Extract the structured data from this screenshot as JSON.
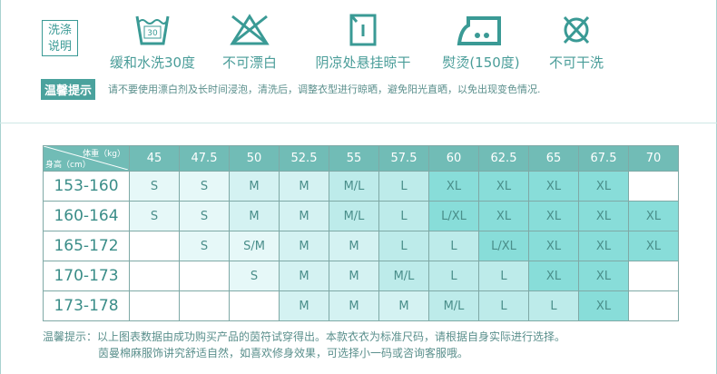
{
  "wash": {
    "label_line1": "洗涤",
    "label_line2": "说明",
    "items": [
      {
        "icon": "wash-30-icon",
        "label": "缓和水洗30度",
        "temp": "30"
      },
      {
        "icon": "no-bleach-icon",
        "label": "不可漂白"
      },
      {
        "icon": "line-dry-shade-icon",
        "label": "阴凉处悬挂晾干"
      },
      {
        "icon": "iron-medium-icon",
        "label": "熨烫(150度)"
      },
      {
        "icon": "no-dry-clean-icon",
        "label": "不可干洗"
      }
    ]
  },
  "tip": {
    "badge": "温馨提示",
    "text": "请不要使用漂白剂及长时间浸泡，清洗后，调整衣型进行晾晒，避免阳光直晒，以免出现变色情况."
  },
  "table": {
    "corner_weight": "体重（kg）",
    "corner_height": "身高（cm）",
    "weights": [
      "45",
      "47.5",
      "50",
      "52.5",
      "55",
      "57.5",
      "60",
      "62.5",
      "65",
      "67.5",
      "70"
    ],
    "rows": [
      {
        "height": "153-160",
        "sizes": [
          "S",
          "S",
          "M",
          "M",
          "M/L",
          "L",
          "XL",
          "XL",
          "XL",
          "XL",
          ""
        ]
      },
      {
        "height": "160-164",
        "sizes": [
          "S",
          "S",
          "M",
          "M",
          "M/L",
          "L",
          "L/XL",
          "XL",
          "XL",
          "XL",
          "XL"
        ]
      },
      {
        "height": "165-172",
        "sizes": [
          "",
          "S",
          "S/M",
          "M",
          "M",
          "L",
          "L",
          "L/XL",
          "XL",
          "XL",
          "XL"
        ]
      },
      {
        "height": "170-173",
        "sizes": [
          "",
          "",
          "S",
          "M",
          "M",
          "M/L",
          "L",
          "L",
          "XL",
          "XL",
          ""
        ]
      },
      {
        "height": "173-178",
        "sizes": [
          "",
          "",
          "",
          "M",
          "M",
          "M",
          "M/L",
          "L",
          "L",
          "XL",
          ""
        ]
      }
    ]
  },
  "colors": {
    "header": "#71bcb6",
    "S": "#e6f8f8",
    "M": "#d4f2f2",
    "L": "#bdebea",
    "XL": "#88ddd9"
  },
  "footer": {
    "line1": "温馨提示：以上图表数据由成功购买产品的茵符试穿得出。本款衣衣为标准尺码，请根据自身实际进行选择。",
    "line2": "茵曼棉麻服饰讲究舒适自然，如喜欢修身效果，可选择小一码或咨询客服哦。"
  }
}
